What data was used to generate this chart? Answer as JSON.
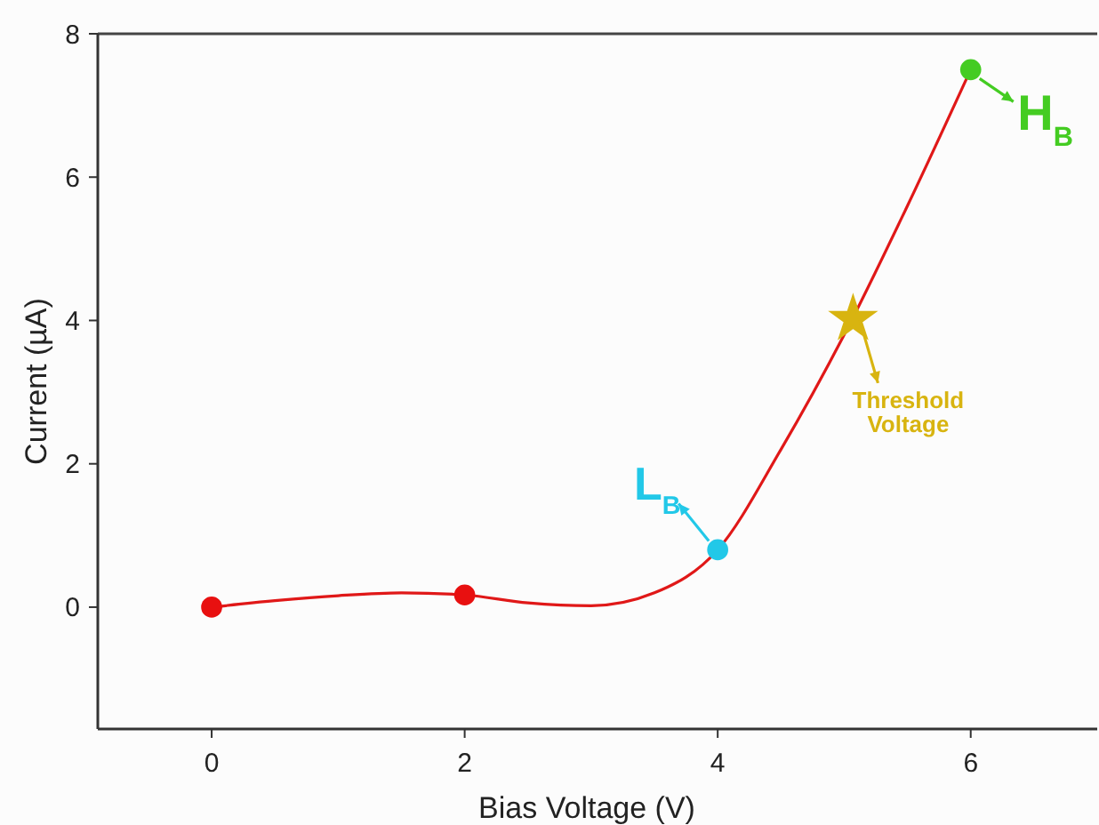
{
  "chart_data": {
    "type": "line",
    "xlabel": "Bias Voltage (V)",
    "ylabel": "Current (µA)",
    "xlim": [
      -0.9,
      7
    ],
    "ylim": [
      -1.7,
      8
    ],
    "xticks": [
      0,
      2,
      4,
      6
    ],
    "yticks": [
      0,
      2,
      4,
      6,
      8
    ],
    "grid": false,
    "series": [
      {
        "color": "#e01818",
        "marker": "none",
        "line_style": "solid",
        "x": [
          0,
          0.5,
          1,
          1.5,
          2,
          2.5,
          3,
          3.5,
          4,
          4.5,
          5,
          5.5,
          6
        ],
        "values": [
          0,
          0.09,
          0.16,
          0.2,
          0.17,
          0.06,
          0.02,
          0.2,
          0.8,
          2.2,
          3.8,
          5.6,
          7.5
        ]
      },
      {
        "type": "scatter",
        "color": "#e81010",
        "marker": "circle",
        "x": [
          0,
          2
        ],
        "values": [
          0,
          0.17
        ]
      },
      {
        "type": "scatter",
        "color": "#22c8e8",
        "marker": "circle",
        "x": [
          4
        ],
        "values": [
          0.8
        ]
      },
      {
        "type": "scatter",
        "color": "#d8b410",
        "marker": "star",
        "x": [
          5.07
        ],
        "values": [
          4.02
        ]
      },
      {
        "type": "scatter",
        "color": "#44cc22",
        "marker": "circle",
        "x": [
          6
        ],
        "values": [
          7.5
        ]
      }
    ],
    "annotations": [
      {
        "text": "L$_{B}$",
        "x": 4,
        "y": 0.8
      },
      {
        "text": "Threshold Voltage",
        "x": 5.07,
        "y": 4.02
      },
      {
        "text": "H$_{B}$",
        "x": 6,
        "y": 7.5
      }
    ]
  }
}
